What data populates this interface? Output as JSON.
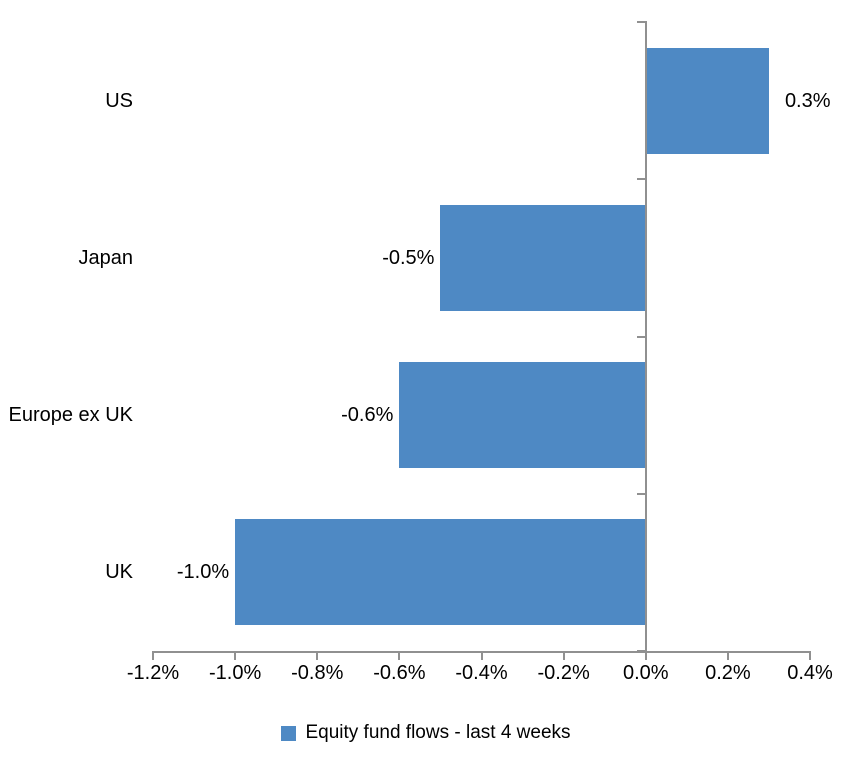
{
  "chart_data": {
    "type": "bar",
    "orientation": "horizontal",
    "title": "",
    "categories": [
      "US",
      "Japan",
      "Europe ex UK",
      "UK"
    ],
    "values": [
      0.3,
      -0.5,
      -0.6,
      -1.0
    ],
    "data_labels": [
      "0.3%",
      "-0.5%",
      "-0.6%",
      "-1.0%"
    ],
    "x_ticks": [
      -1.2,
      -1.0,
      -0.8,
      -0.6,
      -0.4,
      -0.2,
      0.0,
      0.2,
      0.4
    ],
    "x_tick_labels": [
      "-1.2%",
      "-1.0%",
      "-0.8%",
      "-0.6%",
      "-0.4%",
      "-0.2%",
      "0.0%",
      "0.2%",
      "0.4%"
    ],
    "xlim": [
      -1.2,
      0.4
    ],
    "grid": false,
    "legend": {
      "label": "Equity fund flows - last 4 weeks",
      "position": "bottom"
    },
    "colors": {
      "bar": "#4e89c4",
      "axis": "#909090",
      "text": "#000000",
      "background": "#ffffff"
    }
  }
}
